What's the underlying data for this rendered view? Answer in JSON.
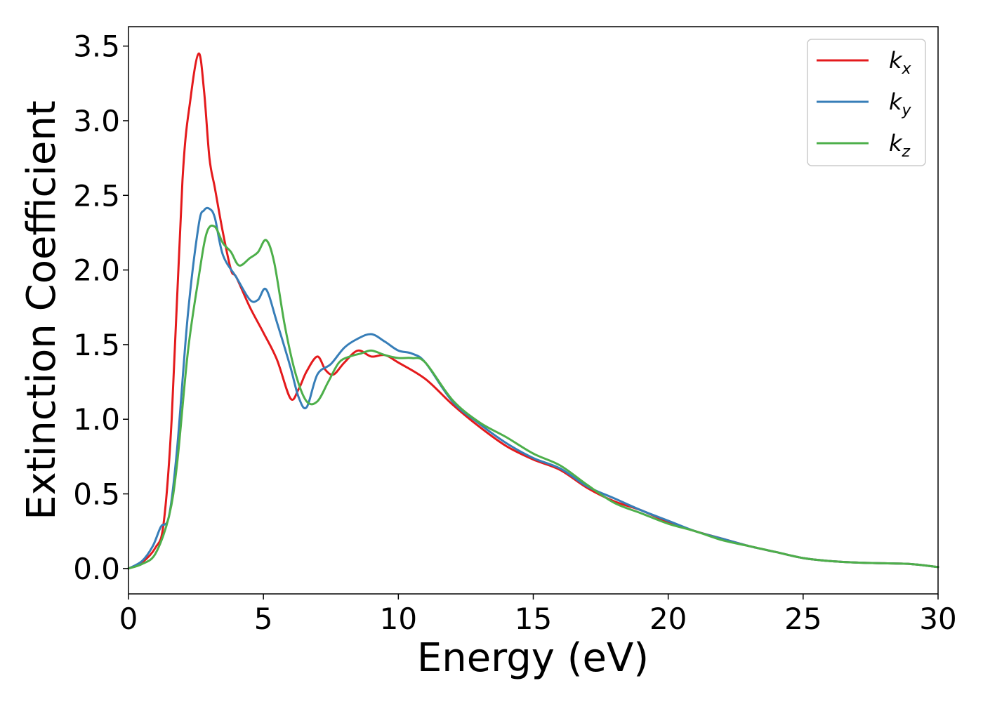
{
  "chart_data": {
    "type": "line",
    "xlabel": "Energy (eV)",
    "ylabel": "Extinction Coefficient",
    "xlim": [
      0,
      30
    ],
    "ylim": [
      -0.17,
      3.63
    ],
    "xticks": [
      0,
      5,
      10,
      15,
      20,
      25,
      30
    ],
    "xtick_labels": [
      "0",
      "5",
      "10",
      "15",
      "20",
      "25",
      "30"
    ],
    "yticks": [
      0.0,
      0.5,
      1.0,
      1.5,
      2.0,
      2.5,
      3.0,
      3.5
    ],
    "ytick_labels": [
      "0.0",
      "0.5",
      "1.0",
      "1.5",
      "2.0",
      "2.5",
      "3.0",
      "3.5"
    ],
    "grid": false,
    "legend_position": "top-right",
    "series": [
      {
        "name": "k",
        "subscript": "x",
        "color": "#e41a1c",
        "x": [
          0,
          0.5,
          1.0,
          1.3,
          1.6,
          2.0,
          2.3,
          2.6,
          2.8,
          3.0,
          3.2,
          3.5,
          3.8,
          4.0,
          4.5,
          5.0,
          5.5,
          6.0,
          6.3,
          6.6,
          7.0,
          7.3,
          7.6,
          8.0,
          8.5,
          9.0,
          9.5,
          10.0,
          11.0,
          12.0,
          13.0,
          14.0,
          15.0,
          16.0,
          17.0,
          18.0,
          19.0,
          20.0,
          21.0,
          22.0,
          23.0,
          24.0,
          25.0,
          26.0,
          27.0,
          28.0,
          29.0,
          30.0
        ],
        "y": [
          0.0,
          0.04,
          0.14,
          0.3,
          1.0,
          2.6,
          3.15,
          3.45,
          3.2,
          2.75,
          2.55,
          2.25,
          2.0,
          1.95,
          1.75,
          1.58,
          1.4,
          1.14,
          1.2,
          1.32,
          1.42,
          1.33,
          1.3,
          1.38,
          1.46,
          1.42,
          1.43,
          1.38,
          1.27,
          1.1,
          0.95,
          0.82,
          0.73,
          0.66,
          0.54,
          0.45,
          0.39,
          0.31,
          0.25,
          0.2,
          0.15,
          0.11,
          0.07,
          0.05,
          0.04,
          0.035,
          0.03,
          0.01
        ]
      },
      {
        "name": "k",
        "subscript": "y",
        "color": "#377eb8",
        "x": [
          0,
          0.5,
          0.9,
          1.2,
          1.5,
          1.8,
          2.2,
          2.6,
          2.8,
          3.0,
          3.2,
          3.5,
          4.0,
          4.5,
          4.8,
          5.1,
          5.5,
          6.0,
          6.3,
          6.6,
          7.0,
          7.5,
          8.0,
          8.5,
          9.0,
          9.5,
          10.0,
          10.5,
          11.0,
          12.0,
          13.0,
          14.0,
          15.0,
          16.0,
          17.0,
          18.0,
          19.0,
          20.0,
          21.0,
          22.0,
          23.0,
          24.0,
          25.0,
          26.0,
          27.0,
          28.0,
          29.0,
          30.0
        ],
        "y": [
          0.0,
          0.05,
          0.15,
          0.28,
          0.35,
          0.8,
          1.7,
          2.3,
          2.4,
          2.41,
          2.35,
          2.1,
          1.95,
          1.8,
          1.8,
          1.87,
          1.65,
          1.35,
          1.15,
          1.08,
          1.3,
          1.37,
          1.48,
          1.54,
          1.57,
          1.52,
          1.46,
          1.44,
          1.38,
          1.12,
          0.97,
          0.84,
          0.74,
          0.67,
          0.55,
          0.47,
          0.39,
          0.32,
          0.25,
          0.2,
          0.15,
          0.11,
          0.07,
          0.05,
          0.04,
          0.035,
          0.03,
          0.01
        ]
      },
      {
        "name": "k",
        "subscript": "z",
        "color": "#4daf4a",
        "x": [
          0,
          0.5,
          1.0,
          1.5,
          1.8,
          2.2,
          2.6,
          2.9,
          3.2,
          3.5,
          3.8,
          4.1,
          4.5,
          4.8,
          5.1,
          5.4,
          5.8,
          6.2,
          6.6,
          7.0,
          7.4,
          7.8,
          8.2,
          8.6,
          9.0,
          9.5,
          10.0,
          10.5,
          11.0,
          12.0,
          13.0,
          14.0,
          15.0,
          16.0,
          17.0,
          18.0,
          19.0,
          20.0,
          21.0,
          22.0,
          23.0,
          24.0,
          25.0,
          26.0,
          27.0,
          28.0,
          29.0,
          30.0
        ],
        "y": [
          0.0,
          0.03,
          0.1,
          0.35,
          0.7,
          1.45,
          1.95,
          2.25,
          2.29,
          2.18,
          2.12,
          2.03,
          2.08,
          2.12,
          2.2,
          2.05,
          1.62,
          1.3,
          1.12,
          1.12,
          1.25,
          1.38,
          1.42,
          1.44,
          1.46,
          1.43,
          1.41,
          1.41,
          1.38,
          1.13,
          0.98,
          0.88,
          0.77,
          0.69,
          0.56,
          0.44,
          0.37,
          0.3,
          0.25,
          0.19,
          0.15,
          0.11,
          0.07,
          0.05,
          0.04,
          0.035,
          0.03,
          0.01
        ]
      }
    ]
  }
}
